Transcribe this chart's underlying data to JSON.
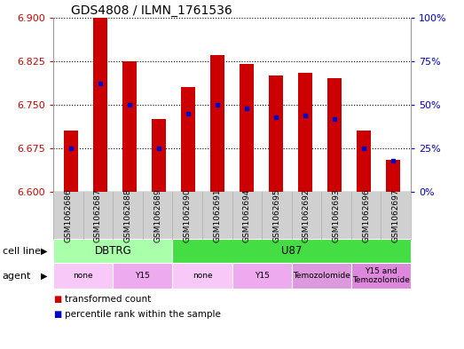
{
  "title": "GDS4808 / ILMN_1761536",
  "samples": [
    "GSM1062686",
    "GSM1062687",
    "GSM1062688",
    "GSM1062689",
    "GSM1062690",
    "GSM1062691",
    "GSM1062694",
    "GSM1062695",
    "GSM1062692",
    "GSM1062693",
    "GSM1062696",
    "GSM1062697"
  ],
  "transformed_count": [
    6.706,
    6.9,
    6.825,
    6.725,
    6.78,
    6.835,
    6.82,
    6.8,
    6.805,
    6.795,
    6.705,
    6.655
  ],
  "percentile_rank": [
    25,
    62,
    50,
    25,
    45,
    50,
    48,
    43,
    44,
    42,
    25,
    18
  ],
  "y_min": 6.6,
  "y_max": 6.9,
  "y_ticks": [
    6.6,
    6.675,
    6.75,
    6.825,
    6.9
  ],
  "y2_ticks": [
    0,
    25,
    50,
    75,
    100
  ],
  "bar_color": "#cc0000",
  "dot_color": "#0000cc",
  "cell_line_groups": [
    {
      "label": "DBTRG",
      "start": 0,
      "end": 3,
      "color": "#aaffaa"
    },
    {
      "label": "U87",
      "start": 4,
      "end": 11,
      "color": "#44dd44"
    }
  ],
  "agent_groups": [
    {
      "label": "none",
      "start": 0,
      "end": 1,
      "color": "#f8c8f8"
    },
    {
      "label": "Y15",
      "start": 2,
      "end": 3,
      "color": "#eeaaee"
    },
    {
      "label": "none",
      "start": 4,
      "end": 5,
      "color": "#f8c8f8"
    },
    {
      "label": "Y15",
      "start": 6,
      "end": 7,
      "color": "#eeaaee"
    },
    {
      "label": "Temozolomide",
      "start": 8,
      "end": 9,
      "color": "#dd99dd"
    },
    {
      "label": "Y15 and\nTemozolomide",
      "start": 10,
      "end": 11,
      "color": "#dd88dd"
    }
  ],
  "cell_line_label": "cell line",
  "agent_label": "agent",
  "legend_items": [
    {
      "label": "transformed count",
      "color": "#cc0000"
    },
    {
      "label": "percentile rank within the sample",
      "color": "#0000cc"
    }
  ],
  "background_color": "#ffffff",
  "tick_label_color_left": "#cc0000",
  "tick_label_color_right": "#0000cc",
  "xtick_bg_color": "#d0d0d0",
  "xtick_sep_color": "#aaaaaa"
}
